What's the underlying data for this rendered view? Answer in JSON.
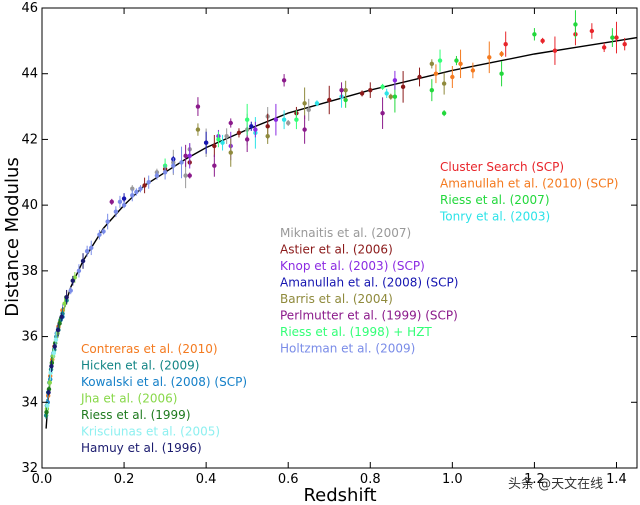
{
  "chart_data": {
    "type": "scatter",
    "xlabel": "Redshift",
    "ylabel": "Distance Modulus",
    "xlim": [
      0.0,
      1.45
    ],
    "ylim": [
      32,
      46
    ],
    "x_ticks": [
      0.0,
      0.2,
      0.4,
      0.6,
      0.8,
      1.0,
      1.2,
      1.4
    ],
    "x_tick_labels": [
      "0.0",
      "0.2",
      "0.4",
      "0.6",
      "0.8",
      "1.0",
      "1.2",
      "1.4"
    ],
    "y_ticks": [
      32,
      34,
      36,
      38,
      40,
      42,
      44,
      46
    ],
    "y_tick_labels": [
      "32",
      "34",
      "36",
      "38",
      "40",
      "42",
      "44",
      "46"
    ],
    "grid": false,
    "fit_curve": {
      "color": "#000000",
      "points": [
        [
          0.01,
          33.2
        ],
        [
          0.015,
          34.1
        ],
        [
          0.02,
          34.7
        ],
        [
          0.03,
          35.6
        ],
        [
          0.04,
          36.2
        ],
        [
          0.05,
          36.7
        ],
        [
          0.07,
          37.5
        ],
        [
          0.1,
          38.3
        ],
        [
          0.15,
          39.3
        ],
        [
          0.2,
          40.0
        ],
        [
          0.25,
          40.6
        ],
        [
          0.3,
          41.0
        ],
        [
          0.35,
          41.4
        ],
        [
          0.4,
          41.75
        ],
        [
          0.5,
          42.3
        ],
        [
          0.6,
          42.8
        ],
        [
          0.7,
          43.15
        ],
        [
          0.8,
          43.5
        ],
        [
          0.9,
          43.8
        ],
        [
          1.0,
          44.1
        ],
        [
          1.1,
          44.35
        ],
        [
          1.2,
          44.6
        ],
        [
          1.3,
          44.8
        ],
        [
          1.4,
          45.0
        ],
        [
          1.45,
          45.1
        ]
      ]
    },
    "series": [
      {
        "name": "Cluster Search (SCP)",
        "color": "#e8242a",
        "points": [
          [
            1.22,
            45.0
          ],
          [
            1.3,
            45.2
          ],
          [
            1.37,
            44.8
          ],
          [
            1.13,
            44.9
          ],
          [
            1.42,
            44.9
          ],
          [
            1.25,
            44.7
          ],
          [
            1.34,
            45.3
          ],
          [
            1.4,
            45.1
          ]
        ]
      },
      {
        "name": "Amanullah et al. (2010) (SCP)",
        "color": "#f47a1f",
        "points": [
          [
            1.02,
            44.3
          ],
          [
            1.05,
            44.1
          ],
          [
            1.09,
            44.5
          ],
          [
            0.96,
            44.0
          ],
          [
            1.12,
            44.6
          ],
          [
            1.0,
            43.9
          ]
        ]
      },
      {
        "name": "Riess et al. (2007)",
        "color": "#22d83c",
        "points": [
          [
            0.95,
            43.5
          ],
          [
            1.01,
            44.4
          ],
          [
            1.12,
            44.0
          ],
          [
            1.2,
            45.2
          ],
          [
            1.3,
            45.5
          ],
          [
            0.74,
            43.2
          ],
          [
            0.86,
            43.3
          ],
          [
            1.39,
            45.1
          ],
          [
            0.98,
            42.8
          ]
        ]
      },
      {
        "name": "Tonry et al. (2003)",
        "color": "#2de3e8",
        "points": [
          [
            0.44,
            41.9
          ],
          [
            0.52,
            42.2
          ],
          [
            0.59,
            42.6
          ],
          [
            0.67,
            43.1
          ],
          [
            0.73,
            43.3
          ],
          [
            0.84,
            43.4
          ]
        ]
      },
      {
        "name": "Miknaitis et al. (2007)",
        "color": "#999999",
        "points": [
          [
            0.28,
            41.0
          ],
          [
            0.32,
            41.3
          ],
          [
            0.36,
            41.7
          ],
          [
            0.4,
            41.9
          ],
          [
            0.45,
            42.1
          ],
          [
            0.5,
            42.3
          ],
          [
            0.55,
            42.7
          ],
          [
            0.6,
            42.5
          ],
          [
            0.65,
            42.9
          ],
          [
            0.22,
            40.5
          ],
          [
            0.35,
            40.9
          ]
        ]
      },
      {
        "name": "Astier et al. (2006)",
        "color": "#8b1a1a",
        "points": [
          [
            0.25,
            40.6
          ],
          [
            0.3,
            41.1
          ],
          [
            0.36,
            41.3
          ],
          [
            0.42,
            41.8
          ],
          [
            0.48,
            42.2
          ],
          [
            0.55,
            42.4
          ],
          [
            0.62,
            42.8
          ],
          [
            0.7,
            43.2
          ],
          [
            0.8,
            43.5
          ],
          [
            0.88,
            43.6
          ],
          [
            0.92,
            43.9
          ],
          [
            0.78,
            43.4
          ]
        ]
      },
      {
        "name": "Knop et al. (2003) (SCP)",
        "color": "#8b2be2",
        "points": [
          [
            0.36,
            41.5
          ],
          [
            0.43,
            42.1
          ],
          [
            0.46,
            41.8
          ],
          [
            0.52,
            42.3
          ],
          [
            0.57,
            42.6
          ],
          [
            0.86,
            43.8
          ]
        ]
      },
      {
        "name": "Amanullah et al. (2008) (SCP)",
        "color": "#1515b0",
        "points": [
          [
            0.2,
            40.2
          ],
          [
            0.32,
            41.4
          ],
          [
            0.4,
            41.9
          ],
          [
            0.51,
            42.4
          ]
        ]
      },
      {
        "name": "Barris et al. (2004)",
        "color": "#8f8a3c",
        "points": [
          [
            0.38,
            42.3
          ],
          [
            0.46,
            41.6
          ],
          [
            0.55,
            42.1
          ],
          [
            0.64,
            43.1
          ],
          [
            0.74,
            43.5
          ],
          [
            0.85,
            43.3
          ],
          [
            0.98,
            43.7
          ],
          [
            0.95,
            44.3
          ]
        ]
      },
      {
        "name": "Perlmutter et al. (1999) (SCP)",
        "color": "#8b1a8b",
        "points": [
          [
            0.36,
            40.9
          ],
          [
            0.42,
            41.2
          ],
          [
            0.46,
            42.5
          ],
          [
            0.5,
            42.0
          ],
          [
            0.59,
            43.8
          ],
          [
            0.64,
            42.3
          ],
          [
            0.73,
            43.5
          ],
          [
            0.83,
            42.8
          ],
          [
            0.38,
            43.0
          ],
          [
            0.17,
            40.1
          ],
          [
            0.35,
            41.5
          ]
        ]
      },
      {
        "name": "Riess et al. (1998) + HZT",
        "color": "#33ff77",
        "points": [
          [
            0.3,
            41.2
          ],
          [
            0.43,
            42.0
          ],
          [
            0.5,
            42.6
          ],
          [
            0.62,
            42.6
          ],
          [
            0.83,
            43.6
          ],
          [
            0.97,
            44.4
          ]
        ]
      },
      {
        "name": "Holtzman et al. (2009)",
        "color": "#7a8ce8",
        "points": [
          [
            0.05,
            36.8
          ],
          [
            0.07,
            37.4
          ],
          [
            0.09,
            38.0
          ],
          [
            0.1,
            38.3
          ],
          [
            0.12,
            38.7
          ],
          [
            0.14,
            39.1
          ],
          [
            0.16,
            39.5
          ],
          [
            0.18,
            39.8
          ],
          [
            0.2,
            40.0
          ],
          [
            0.22,
            40.3
          ],
          [
            0.24,
            40.5
          ],
          [
            0.26,
            40.7
          ],
          [
            0.28,
            40.9
          ],
          [
            0.3,
            41.0
          ],
          [
            0.32,
            41.2
          ],
          [
            0.34,
            41.3
          ],
          [
            0.11,
            38.6
          ],
          [
            0.15,
            39.2
          ],
          [
            0.19,
            40.1
          ],
          [
            0.23,
            40.4
          ]
        ]
      },
      {
        "name": "Contreras et al. (2010)",
        "color": "#f47a1f",
        "points": [
          [
            0.015,
            34.2
          ],
          [
            0.02,
            34.8
          ],
          [
            0.025,
            35.3
          ],
          [
            0.03,
            35.7
          ],
          [
            0.04,
            36.3
          ],
          [
            0.05,
            36.8
          ],
          [
            0.06,
            37.2
          ]
        ]
      },
      {
        "name": "Hicken et al. (2009)",
        "color": "#138585",
        "points": [
          [
            0.01,
            33.6
          ],
          [
            0.012,
            33.9
          ],
          [
            0.015,
            34.3
          ],
          [
            0.018,
            34.6
          ],
          [
            0.022,
            35.0
          ],
          [
            0.026,
            35.4
          ],
          [
            0.03,
            35.6
          ],
          [
            0.035,
            36.0
          ],
          [
            0.04,
            36.2
          ],
          [
            0.045,
            36.5
          ],
          [
            0.05,
            36.7
          ],
          [
            0.06,
            37.1
          ]
        ]
      },
      {
        "name": "Kowalski et al. (2008) (SCP)",
        "color": "#1580c8",
        "points": [
          [
            0.014,
            34.0
          ],
          [
            0.02,
            34.7
          ],
          [
            0.028,
            35.5
          ],
          [
            0.036,
            36.1
          ],
          [
            0.05,
            36.6
          ]
        ]
      },
      {
        "name": "Jha et al. (2006)",
        "color": "#88d84a",
        "points": [
          [
            0.012,
            33.8
          ],
          [
            0.019,
            34.6
          ],
          [
            0.027,
            35.4
          ],
          [
            0.038,
            36.1
          ],
          [
            0.055,
            37.0
          ],
          [
            0.08,
            37.8
          ]
        ]
      },
      {
        "name": "Riess et al. (1999)",
        "color": "#1e7a1e",
        "points": [
          [
            0.011,
            33.7
          ],
          [
            0.017,
            34.4
          ],
          [
            0.024,
            35.2
          ],
          [
            0.032,
            35.8
          ],
          [
            0.043,
            36.4
          ]
        ]
      },
      {
        "name": "Krisciunas et al. (2005)",
        "color": "#8ef0f0",
        "points": [
          [
            0.013,
            33.9
          ],
          [
            0.021,
            34.9
          ],
          [
            0.029,
            35.5
          ],
          [
            0.034,
            35.9
          ]
        ]
      },
      {
        "name": "Hamuy et al. (1996)",
        "color": "#1a1a6e",
        "points": [
          [
            0.016,
            34.3
          ],
          [
            0.023,
            35.1
          ],
          [
            0.031,
            35.7
          ],
          [
            0.039,
            36.2
          ],
          [
            0.048,
            36.6
          ],
          [
            0.06,
            37.2
          ],
          [
            0.075,
            37.7
          ],
          [
            0.1,
            38.3
          ]
        ]
      }
    ],
    "legend_groups": [
      {
        "placement": "right",
        "entries": [
          0,
          1,
          2,
          3
        ]
      },
      {
        "placement": "center",
        "entries": [
          4,
          5,
          6,
          7,
          8,
          9,
          10,
          11
        ]
      },
      {
        "placement": "lower-left",
        "entries": [
          12,
          13,
          14,
          15,
          16,
          17,
          18
        ]
      }
    ]
  },
  "watermark": {
    "text": "头条 @天文在线"
  }
}
